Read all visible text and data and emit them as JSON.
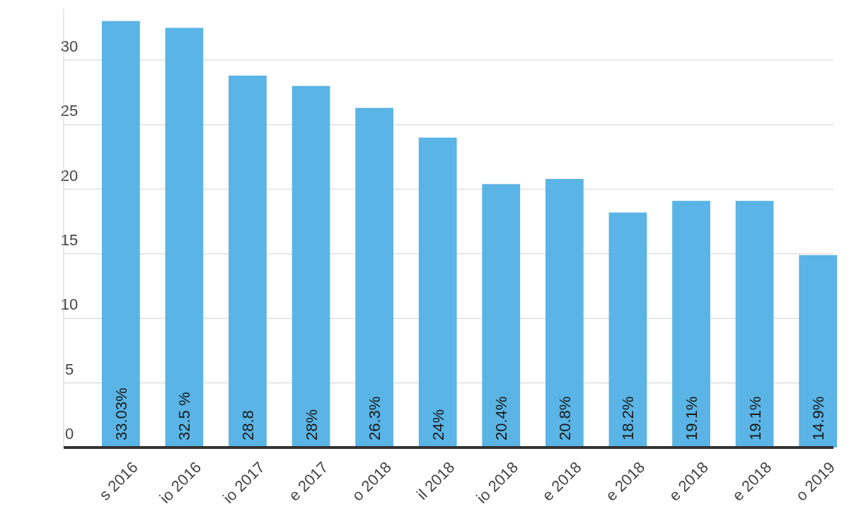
{
  "chart_data": {
    "type": "bar",
    "categories": [
      "s 2016",
      "io 2016",
      "io 2017",
      "e 2017",
      "o 2018",
      "il 2018",
      "io 2018",
      "e 2018",
      "e 2018",
      "e 2018",
      "e 2018",
      "o 2019"
    ],
    "values": [
      33.03,
      32.5,
      28.8,
      28,
      26.3,
      24,
      20.4,
      20.8,
      18.2,
      19.1,
      19.1,
      14.9
    ],
    "value_labels": [
      "33.03%",
      "32.5 %",
      "28.8",
      "28%",
      "26.3%",
      "24%",
      "20.4%",
      "20.8%",
      "18.2%",
      "19.1%",
      "19.1%",
      "14.9%"
    ],
    "color": "#5ab4e5",
    "ylim": [
      0,
      34
    ],
    "yticks": [
      0,
      5,
      10,
      15,
      20,
      25,
      30
    ],
    "grid": "y"
  }
}
